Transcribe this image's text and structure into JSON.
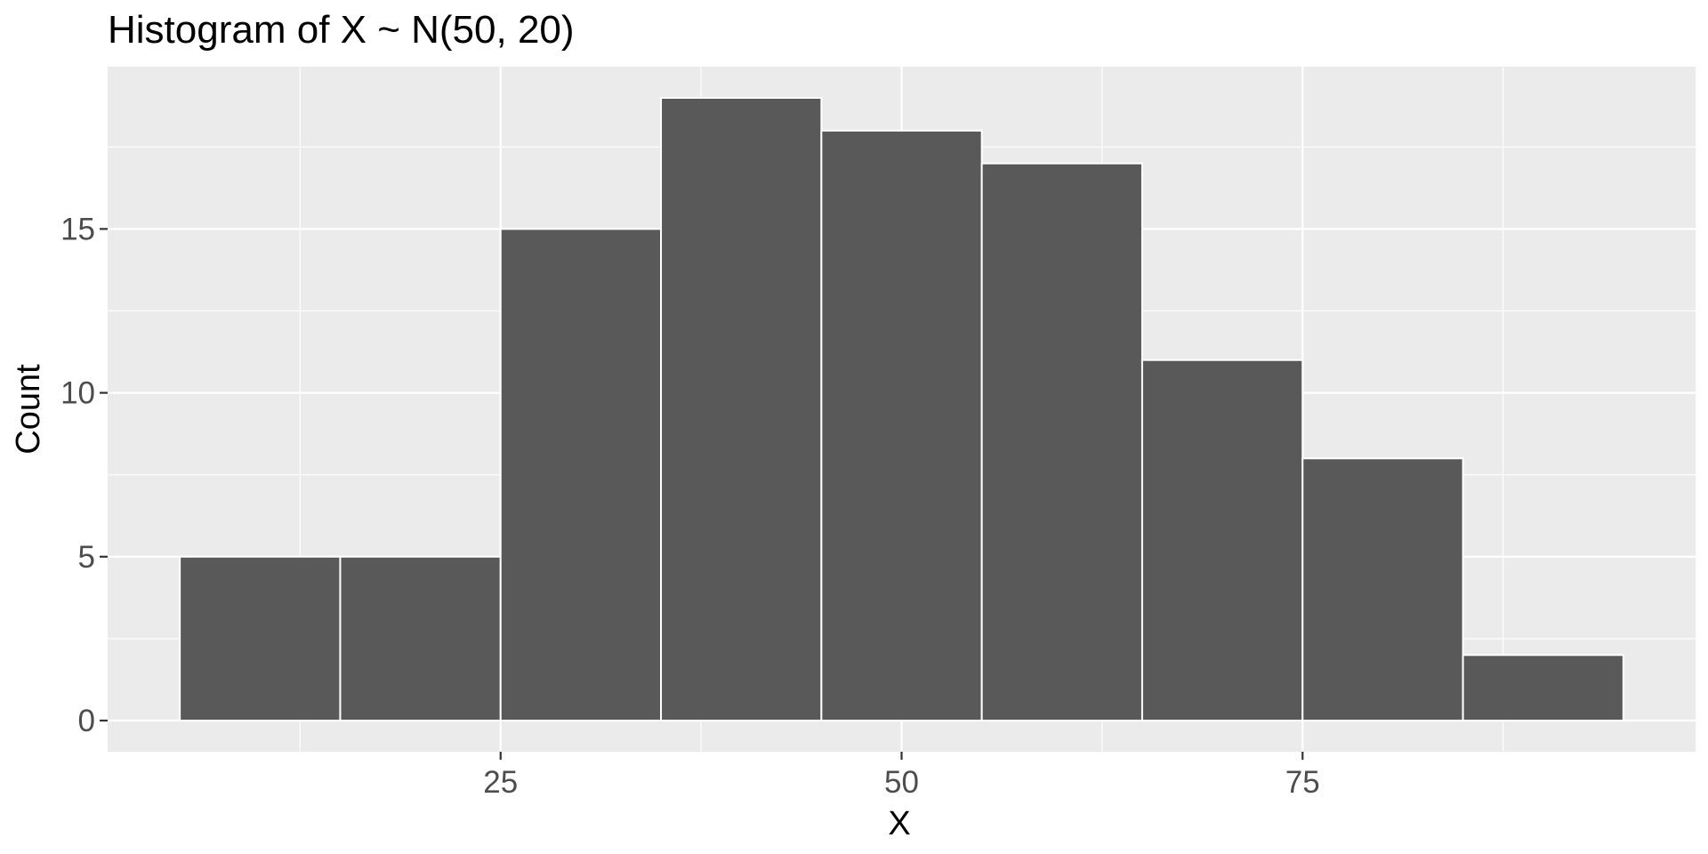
{
  "chart_data": {
    "type": "bar",
    "title": "Histogram of X ~ N(50, 20)",
    "xlabel": "X",
    "ylabel": "Count",
    "bins": [
      {
        "x0": 5,
        "x1": 15,
        "count": 5
      },
      {
        "x0": 15,
        "x1": 25,
        "count": 5
      },
      {
        "x0": 25,
        "x1": 35,
        "count": 15
      },
      {
        "x0": 35,
        "x1": 45,
        "count": 19
      },
      {
        "x0": 45,
        "x1": 55,
        "count": 18
      },
      {
        "x0": 55,
        "x1": 65,
        "count": 17
      },
      {
        "x0": 65,
        "x1": 75,
        "count": 11
      },
      {
        "x0": 75,
        "x1": 85,
        "count": 8
      },
      {
        "x0": 85,
        "x1": 95,
        "count": 2
      }
    ],
    "xlim": [
      0.5,
      99.5
    ],
    "ylim": [
      -0.95,
      19.95
    ],
    "x_major_ticks": [
      25,
      50,
      75
    ],
    "x_minor_ticks": [
      12.5,
      37.5,
      62.5,
      87.5
    ],
    "y_major_ticks": [
      0,
      5,
      10,
      15
    ],
    "y_minor_ticks": [
      2.5,
      7.5,
      12.5,
      17.5
    ],
    "x_tick_labels": [
      "25",
      "50",
      "75"
    ],
    "y_tick_labels": [
      "0",
      "5",
      "10",
      "15"
    ],
    "grid": true,
    "legend": "none",
    "colors": {
      "panel_background": "#ebebeb",
      "bar_fill": "#595959",
      "bar_outline": "#ffffff",
      "grid": "#ffffff"
    }
  }
}
